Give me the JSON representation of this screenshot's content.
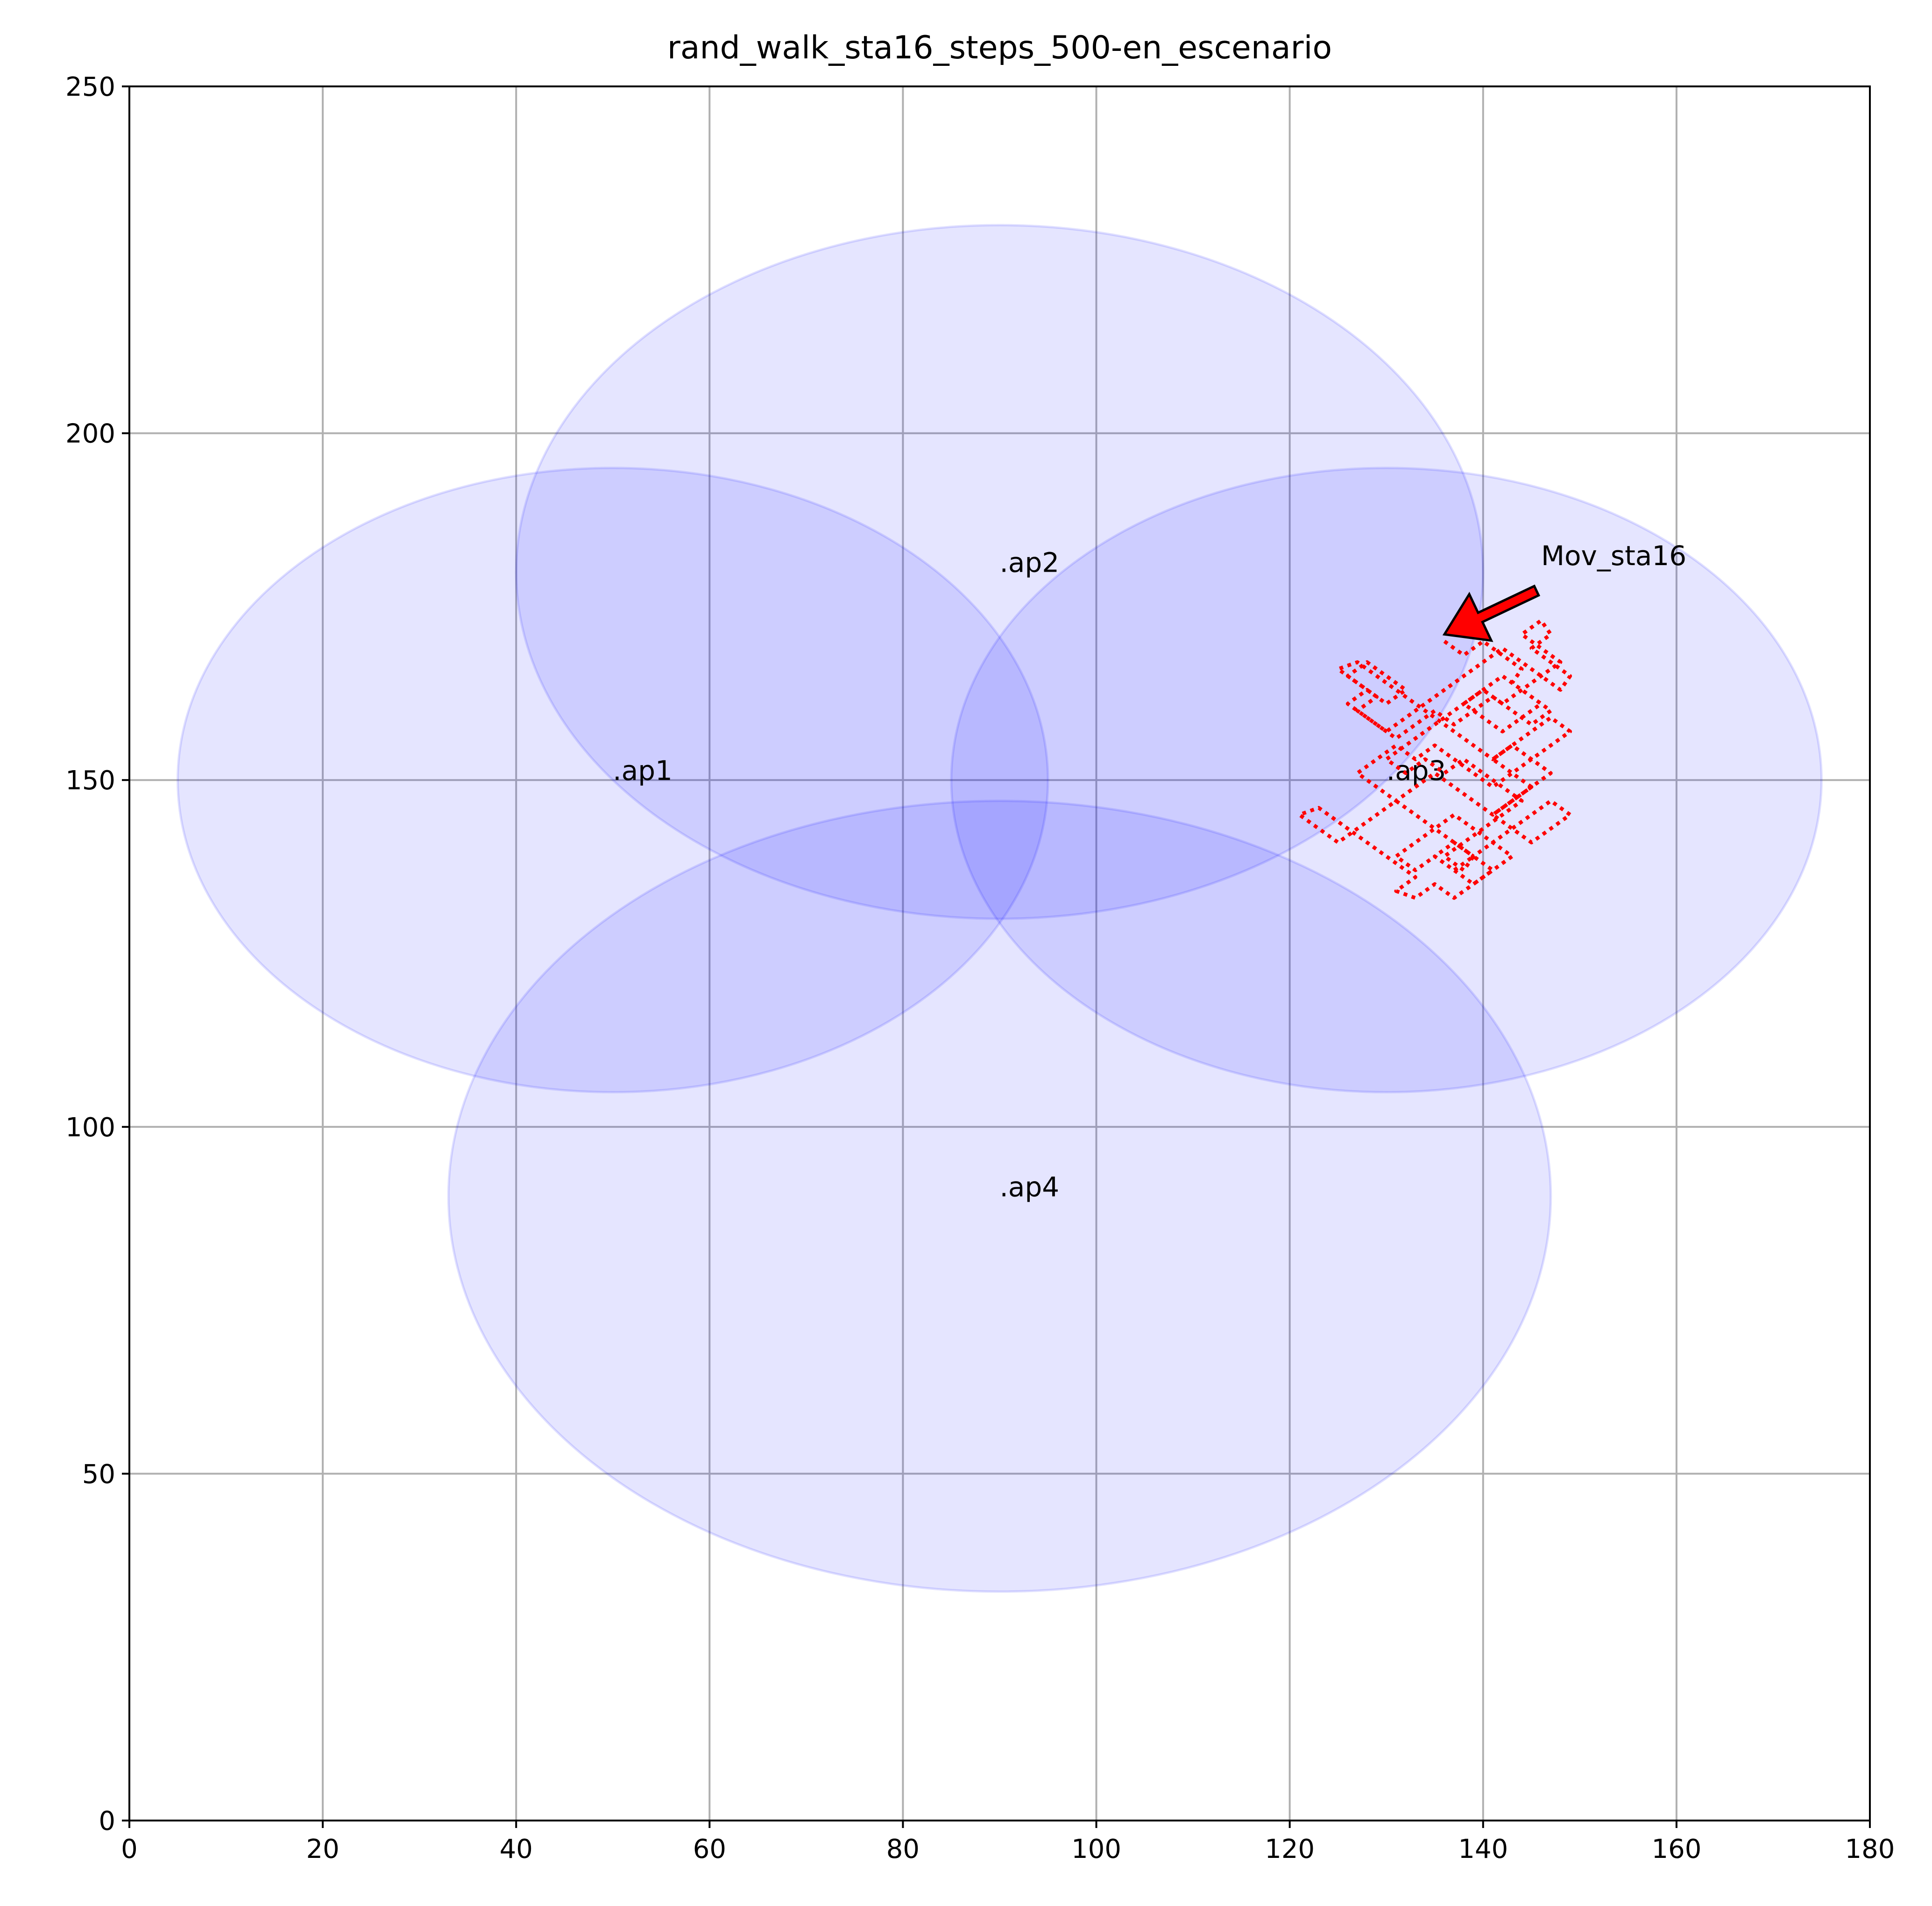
{
  "chart_data": {
    "type": "scatter",
    "title": "rand_walk_sta16_steps_500-en_escenario",
    "xlabel": "",
    "ylabel": "",
    "xlim": [
      0,
      180
    ],
    "ylim": [
      0,
      250
    ],
    "xticks": [
      0,
      20,
      40,
      60,
      80,
      100,
      120,
      140,
      160,
      180
    ],
    "yticks": [
      0,
      50,
      100,
      150,
      200,
      250
    ],
    "xtick_labels": [
      "0",
      "20",
      "40",
      "60",
      "80",
      "100",
      "120",
      "140",
      "160",
      "180"
    ],
    "ytick_labels": [
      "0",
      "50",
      "100",
      "150",
      "200",
      "250"
    ],
    "grid": true,
    "coverage_color": "#0000ff",
    "coverage_opacity": 0.1,
    "path_color": "#ff0000",
    "access_points": [
      {
        "label": ".ap1",
        "x": 50,
        "y": 150,
        "rx": 45,
        "ry": 45
      },
      {
        "label": ".ap2",
        "x": 90,
        "y": 180,
        "rx": 50,
        "ry": 50
      },
      {
        "label": ".ap3",
        "x": 130,
        "y": 150,
        "rx": 45,
        "ry": 45
      },
      {
        "label": ".ap4",
        "x": 90,
        "y": 90,
        "rx": 57,
        "ry": 57
      }
    ],
    "series": [
      {
        "values": [
          [
            136,
            170
          ],
          [
            138,
            168
          ],
          [
            140,
            170
          ],
          [
            142,
            168
          ],
          [
            144,
            166
          ],
          [
            143,
            164
          ],
          [
            145,
            162
          ],
          [
            147,
            160
          ],
          [
            145,
            158
          ],
          [
            143,
            160
          ],
          [
            141,
            162
          ],
          [
            139,
            160
          ],
          [
            137,
            158
          ],
          [
            135,
            160
          ],
          [
            133,
            158
          ],
          [
            131,
            156
          ],
          [
            129,
            158
          ],
          [
            127,
            160
          ],
          [
            129,
            162
          ],
          [
            127,
            164
          ],
          [
            125,
            166
          ],
          [
            127,
            167
          ],
          [
            129,
            165
          ],
          [
            131,
            163
          ],
          [
            133,
            161
          ],
          [
            135,
            159
          ],
          [
            137,
            157
          ],
          [
            139,
            155
          ],
          [
            141,
            153
          ],
          [
            143,
            155
          ],
          [
            145,
            157
          ],
          [
            147,
            159
          ],
          [
            149,
            157
          ],
          [
            147,
            155
          ],
          [
            145,
            153
          ],
          [
            143,
            151
          ],
          [
            141,
            149
          ],
          [
            139,
            151
          ],
          [
            137,
            153
          ],
          [
            135,
            155
          ],
          [
            133,
            153
          ],
          [
            131,
            155
          ],
          [
            129,
            153
          ],
          [
            127,
            151
          ],
          [
            129,
            149
          ],
          [
            131,
            147
          ],
          [
            133,
            149
          ],
          [
            135,
            151
          ],
          [
            137,
            149
          ],
          [
            139,
            147
          ],
          [
            141,
            145
          ],
          [
            143,
            147
          ],
          [
            145,
            149
          ],
          [
            143,
            151
          ],
          [
            141,
            153
          ],
          [
            143,
            155
          ],
          [
            145,
            153
          ],
          [
            147,
            151
          ],
          [
            145,
            149
          ],
          [
            143,
            147
          ],
          [
            141,
            145
          ],
          [
            143,
            143
          ],
          [
            145,
            141
          ],
          [
            147,
            143
          ],
          [
            149,
            145
          ],
          [
            147,
            147
          ],
          [
            145,
            145
          ],
          [
            143,
            143
          ],
          [
            141,
            141
          ],
          [
            139,
            139
          ],
          [
            137,
            141
          ],
          [
            135,
            143
          ],
          [
            133,
            141
          ],
          [
            131,
            139
          ],
          [
            133,
            137
          ],
          [
            135,
            139
          ],
          [
            137,
            137
          ],
          [
            139,
            135
          ],
          [
            141,
            137
          ],
          [
            143,
            139
          ],
          [
            141,
            141
          ],
          [
            139,
            143
          ],
          [
            137,
            145
          ],
          [
            135,
            143
          ],
          [
            133,
            145
          ],
          [
            131,
            147
          ],
          [
            129,
            145
          ],
          [
            127,
            143
          ],
          [
            125,
            141
          ],
          [
            123,
            143
          ],
          [
            121,
            145
          ],
          [
            123,
            146
          ],
          [
            125,
            144
          ],
          [
            127,
            142
          ],
          [
            129,
            140
          ],
          [
            131,
            138
          ],
          [
            133,
            136
          ],
          [
            131,
            134
          ],
          [
            133,
            133
          ],
          [
            135,
            135
          ],
          [
            137,
            133
          ],
          [
            139,
            135
          ],
          [
            141,
            137
          ],
          [
            139,
            139
          ],
          [
            137,
            137
          ],
          [
            135,
            139
          ],
          [
            137,
            141
          ],
          [
            139,
            139
          ],
          [
            138,
            137
          ],
          [
            136,
            139
          ],
          [
            138,
            141
          ],
          [
            140,
            143
          ],
          [
            142,
            145
          ],
          [
            144,
            147
          ],
          [
            142,
            149
          ],
          [
            140,
            151
          ],
          [
            138,
            153
          ],
          [
            136,
            151
          ],
          [
            134,
            153
          ],
          [
            132,
            151
          ],
          [
            130,
            153
          ],
          [
            132,
            155
          ],
          [
            134,
            157
          ],
          [
            136,
            159
          ],
          [
            138,
            161
          ],
          [
            140,
            163
          ],
          [
            142,
            165
          ],
          [
            144,
            163
          ],
          [
            146,
            161
          ],
          [
            144,
            159
          ],
          [
            142,
            157
          ],
          [
            140,
            159
          ],
          [
            138,
            161
          ],
          [
            140,
            163
          ],
          [
            142,
            161
          ],
          [
            144,
            163
          ],
          [
            146,
            165
          ],
          [
            148,
            167
          ],
          [
            146,
            169
          ],
          [
            144,
            171
          ],
          [
            146,
            173
          ],
          [
            147,
            171
          ],
          [
            145,
            169
          ],
          [
            147,
            167
          ],
          [
            149,
            165
          ],
          [
            148,
            163
          ],
          [
            146,
            165
          ],
          [
            144,
            167
          ],
          [
            142,
            169
          ],
          [
            140,
            167
          ],
          [
            138,
            165
          ],
          [
            136,
            163
          ],
          [
            134,
            161
          ],
          [
            132,
            159
          ],
          [
            130,
            157
          ],
          [
            128,
            159
          ],
          [
            126,
            161
          ],
          [
            128,
            163
          ],
          [
            130,
            161
          ],
          [
            132,
            163
          ],
          [
            130,
            165
          ],
          [
            128,
            167
          ],
          [
            126,
            165
          ],
          [
            128,
            163
          ]
        ]
      }
    ],
    "annotations": [
      {
        "text": "Mov_sta16",
        "arrow_to": [
          136,
          171
        ],
        "text_at": [
          146,
          181
        ],
        "arrow_color": "#ff0000"
      }
    ]
  }
}
